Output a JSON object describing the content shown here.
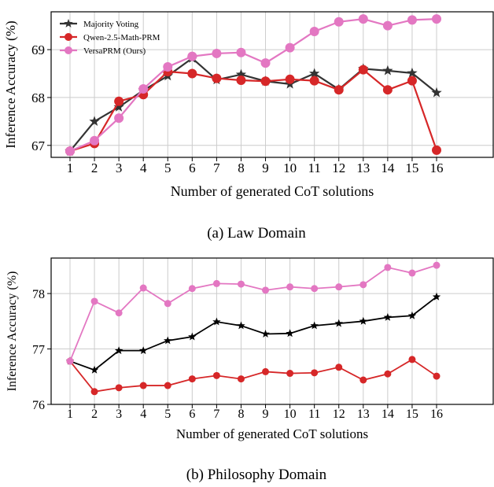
{
  "colors": {
    "majority": "#333333",
    "qwen": "#d62728",
    "versa": "#e377c2",
    "grid": "#cccccc"
  },
  "chart_data": [
    {
      "type": "line",
      "caption": "(a) Law Domain",
      "xlabel": "Number of generated CoT solutions",
      "ylabel": "Inference Accuracy (%)",
      "x": [
        1,
        2,
        3,
        4,
        5,
        6,
        7,
        8,
        9,
        10,
        11,
        12,
        13,
        14,
        15,
        16
      ],
      "yticks": [
        67,
        68,
        69
      ],
      "ylim": [
        66.75,
        69.79
      ],
      "grid": true,
      "legend": "top-left",
      "series": [
        {
          "name": "Majority Voting",
          "marker": "star",
          "color_key": "majority",
          "values": [
            66.88,
            67.5,
            67.8,
            68.15,
            68.45,
            68.82,
            68.37,
            68.48,
            68.34,
            68.28,
            68.5,
            68.17,
            68.6,
            68.56,
            68.51,
            68.1
          ]
        },
        {
          "name": "Qwen-2.5-Math-PRM",
          "marker": "circle",
          "color_key": "qwen",
          "values": [
            66.88,
            67.04,
            67.92,
            68.06,
            68.54,
            68.5,
            68.4,
            68.36,
            68.34,
            68.38,
            68.35,
            68.16,
            68.58,
            68.16,
            68.35,
            66.9
          ]
        },
        {
          "name": "VersaPRM (Ours)",
          "marker": "circle",
          "color_key": "versa",
          "values": [
            66.88,
            67.1,
            67.57,
            68.18,
            68.64,
            68.86,
            68.92,
            68.94,
            68.72,
            69.04,
            69.38,
            69.58,
            69.64,
            69.5,
            69.62,
            69.64
          ]
        }
      ]
    },
    {
      "type": "line",
      "caption": "(b) Philosophy Domain",
      "xlabel": "Number of generated CoT solutions",
      "ylabel": "Inference Accuracy (%)",
      "x": [
        1,
        2,
        3,
        4,
        5,
        6,
        7,
        8,
        9,
        10,
        11,
        12,
        13,
        14,
        15,
        16
      ],
      "yticks": [
        76,
        77,
        78
      ],
      "ylim": [
        76.0,
        78.64
      ],
      "grid": true,
      "series": [
        {
          "marker": "star",
          "color_key": "majority_dark",
          "values": [
            76.78,
            76.62,
            76.97,
            76.97,
            77.15,
            77.22,
            77.49,
            77.42,
            77.27,
            77.28,
            77.42,
            77.46,
            77.5,
            77.57,
            77.6,
            77.94
          ]
        },
        {
          "marker": "circle",
          "color_key": "qwen",
          "values": [
            76.78,
            76.23,
            76.3,
            76.34,
            76.34,
            76.46,
            76.52,
            76.46,
            76.59,
            76.56,
            76.57,
            76.67,
            76.44,
            76.55,
            76.81,
            76.51
          ]
        },
        {
          "marker": "circle",
          "color_key": "versa",
          "values": [
            76.78,
            77.86,
            77.65,
            78.1,
            77.82,
            78.09,
            78.18,
            78.17,
            78.06,
            78.12,
            78.09,
            78.12,
            78.16,
            78.47,
            78.37,
            78.51
          ]
        }
      ]
    }
  ]
}
